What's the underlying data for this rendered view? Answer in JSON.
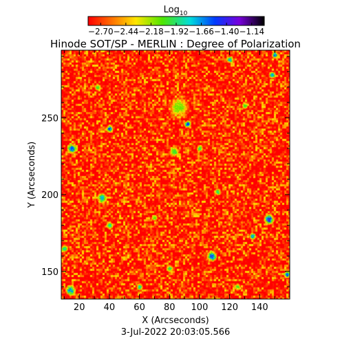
{
  "chart_data": {
    "type": "heatmap",
    "title": "Hinode SOT/SP - MERLIN : Degree of Polarization",
    "subtitle": "3-Jul-2022 20:03:05.566",
    "xlabel": "X (Arcseconds)",
    "ylabel": "Y (Arcseconds)",
    "xlim": [
      8,
      160
    ],
    "ylim": [
      132,
      294
    ],
    "x_ticks": [
      20,
      40,
      60,
      80,
      100,
      120,
      140
    ],
    "y_ticks": [
      150,
      200,
      250
    ],
    "colorbar": {
      "label_base": "Log",
      "label_sub": "10",
      "range": [
        -2.83,
        -1.01
      ],
      "ticks": [
        "-2.70",
        "-2.44",
        "-2.18",
        "-1.92",
        "-1.66",
        "-1.40",
        "-1.14"
      ],
      "colormap": "rainbow (red-orange-yellow-green-cyan-blue-violet-black)"
    },
    "field": {
      "background_level": -2.7,
      "features": [
        {
          "x": 15,
          "y": 230,
          "value": -1.55,
          "r": 3
        },
        {
          "x": 35,
          "y": 198,
          "value": -1.7,
          "r": 3
        },
        {
          "x": 40,
          "y": 180,
          "value": -1.8,
          "r": 2
        },
        {
          "x": 40,
          "y": 243,
          "value": -1.5,
          "r": 2
        },
        {
          "x": 80,
          "y": 152,
          "value": -1.9,
          "r": 2
        },
        {
          "x": 83,
          "y": 228,
          "value": -2.0,
          "r": 3
        },
        {
          "x": 86,
          "y": 257,
          "value": -2.1,
          "r": 6
        },
        {
          "x": 92,
          "y": 246,
          "value": -1.5,
          "r": 2
        },
        {
          "x": 108,
          "y": 160,
          "value": -1.45,
          "r": 3
        },
        {
          "x": 112,
          "y": 202,
          "value": -1.9,
          "r": 2
        },
        {
          "x": 120,
          "y": 288,
          "value": -1.7,
          "r": 2
        },
        {
          "x": 135,
          "y": 173,
          "value": -1.6,
          "r": 2
        },
        {
          "x": 146,
          "y": 184,
          "value": -1.4,
          "r": 3
        },
        {
          "x": 148,
          "y": 278,
          "value": -1.6,
          "r": 2
        },
        {
          "x": 150,
          "y": 291,
          "value": -1.55,
          "r": 2
        },
        {
          "x": 158,
          "y": 148,
          "value": -1.5,
          "r": 2
        },
        {
          "x": 14,
          "y": 138,
          "value": -1.6,
          "r": 3
        },
        {
          "x": 32,
          "y": 270,
          "value": -2.0,
          "r": 2
        },
        {
          "x": 60,
          "y": 140,
          "value": -1.8,
          "r": 2
        },
        {
          "x": 100,
          "y": 230,
          "value": -1.9,
          "r": 2
        },
        {
          "x": 130,
          "y": 258,
          "value": -2.0,
          "r": 2
        },
        {
          "x": 70,
          "y": 185,
          "value": -2.1,
          "r": 2
        },
        {
          "x": 10,
          "y": 165,
          "value": -1.8,
          "r": 2
        },
        {
          "x": 125,
          "y": 140,
          "value": -2.0,
          "r": 2
        }
      ]
    }
  }
}
